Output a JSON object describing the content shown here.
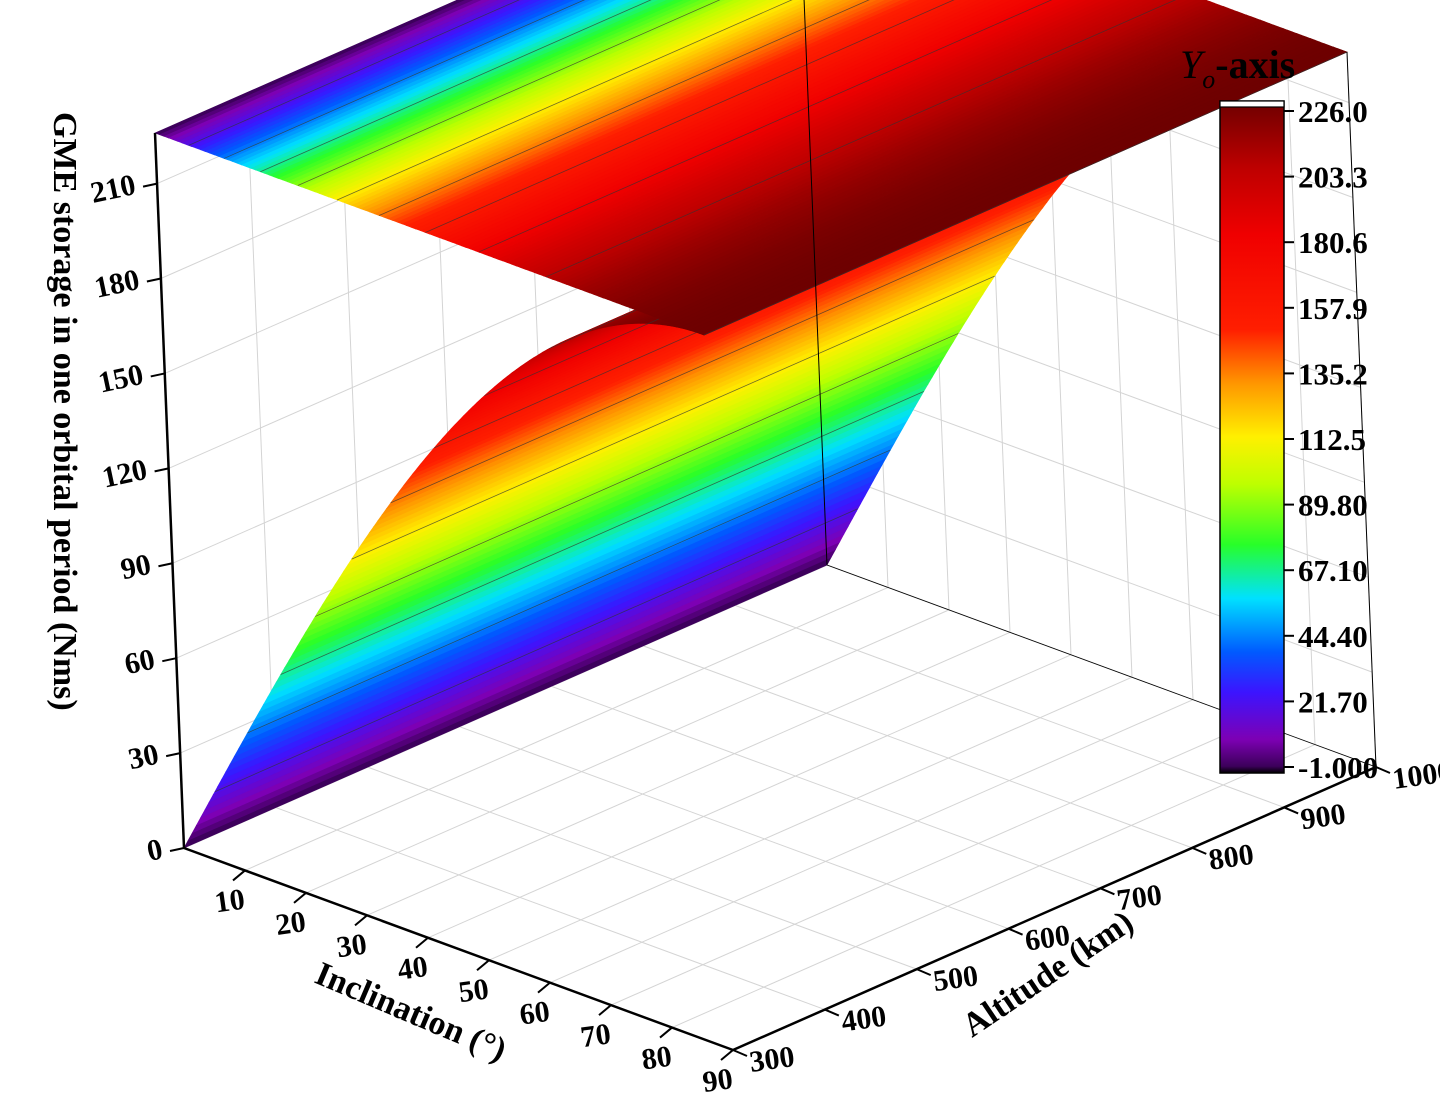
{
  "chart_data": {
    "type": "surface3d",
    "title": "",
    "zlabel": "GME storage in one orbital period (Nms)",
    "xlabel": "Inclination (°)",
    "ylabel": "Altitude (km)",
    "z_ticks": [
      "0",
      "30",
      "60",
      "90",
      "120",
      "150",
      "180",
      "210"
    ],
    "x_ticks": [
      "10",
      "20",
      "30",
      "40",
      "50",
      "60",
      "70",
      "80",
      "90"
    ],
    "y_ticks": [
      "300",
      "400",
      "500",
      "600",
      "700",
      "800",
      "900",
      "1000"
    ],
    "xlim": [
      0,
      90
    ],
    "ylim": [
      300,
      1000
    ],
    "zlim": [
      0,
      226
    ],
    "grid": true,
    "colorbar": {
      "title_italic": "Y",
      "title_sub": "o",
      "title_rest": "-axis",
      "ticks": [
        "226.0",
        "203.3",
        "180.6",
        "157.9",
        "135.2",
        "112.5",
        "89.80",
        "67.10",
        "44.40",
        "21.70",
        "-1.000"
      ],
      "range": [
        -1.0,
        226.0
      ],
      "colormap": "rainbow",
      "colors": [
        "#000000",
        "#7b00b0",
        "#2a14ff",
        "#00e8ff",
        "#22ff22",
        "#ffff00",
        "#ff9900",
        "#ff0000",
        "#d40000",
        "#7a0000"
      ]
    },
    "surface": {
      "description_function": "z = 226 * sin(inclination)",
      "x": [
        0,
        10,
        20,
        30,
        40,
        50,
        60,
        70,
        80,
        90
      ],
      "z_at_x": [
        0,
        39.2,
        77.3,
        113.0,
        145.3,
        173.1,
        195.7,
        212.4,
        222.6,
        226.0
      ]
    },
    "projection_plane": "top",
    "contour_lines": true
  }
}
